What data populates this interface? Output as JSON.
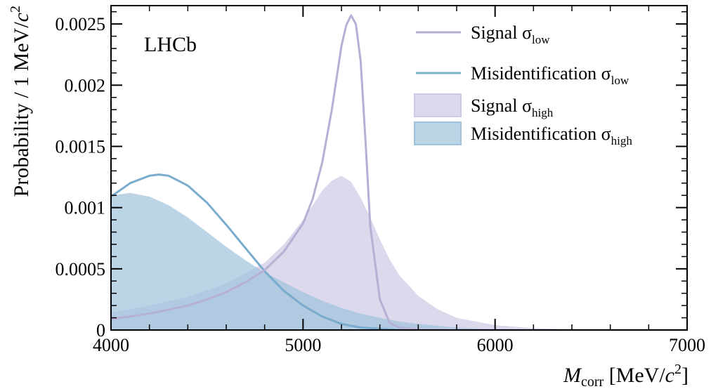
{
  "chart_data": {
    "type": "line",
    "annotation": "LHCb",
    "xlabel": "M",
    "xlabel_sub": "corr",
    "xlabel_unit_prefix": " [MeV/",
    "xlabel_unit_c": "c",
    "xlabel_unit_exp": "2",
    "xlabel_unit_suffix": "]",
    "ylabel_prefix": "Probability / 1 MeV/",
    "ylabel_c": "c",
    "ylabel_exp": "2",
    "xlim": [
      4000,
      7000
    ],
    "ylim": [
      0,
      0.00265
    ],
    "xticks": [
      4000,
      5000,
      6000,
      7000
    ],
    "yticks": [
      0,
      0.0005,
      0.001,
      0.0015,
      0.002,
      0.0025
    ],
    "xtick_labels": [
      "4000",
      "5000",
      "6000",
      "7000"
    ],
    "ytick_labels": [
      "0",
      "0.0005",
      "0.001",
      "0.0015",
      "0.002",
      "0.0025"
    ],
    "legend_position": "top-right",
    "grid": false,
    "series": [
      {
        "name": "Signal",
        "name_symbol": "σ",
        "name_sub": "low",
        "style": "line",
        "color": "#b5b0d4",
        "x": [
          4000,
          4100,
          4200,
          4300,
          4400,
          4500,
          4600,
          4700,
          4800,
          4900,
          5000,
          5050,
          5100,
          5150,
          5200,
          5225,
          5250,
          5275,
          5300,
          5325,
          5350,
          5400,
          5450,
          5500,
          5600,
          5800,
          6000,
          7000
        ],
        "y": [
          9e-05,
          0.00011,
          0.000135,
          0.000165,
          0.0002,
          0.00025,
          0.00031,
          0.00039,
          0.00049,
          0.00064,
          0.00087,
          0.00107,
          0.00137,
          0.0018,
          0.00232,
          0.00249,
          0.00257,
          0.0025,
          0.0022,
          0.00155,
          0.00085,
          0.00025,
          6e-05,
          2e-05,
          5e-06,
          0.0,
          0.0,
          0.0
        ]
      },
      {
        "name": "Misidentification",
        "name_symbol": "σ",
        "name_sub": "low",
        "style": "line",
        "color": "#7aaccd",
        "x": [
          4000,
          4100,
          4200,
          4250,
          4300,
          4400,
          4500,
          4600,
          4700,
          4800,
          4900,
          5000,
          5100,
          5200,
          5300,
          5400,
          5500,
          5600,
          5800,
          6000,
          7000
        ],
        "y": [
          0.00109,
          0.0012,
          0.00126,
          0.00127,
          0.00126,
          0.00118,
          0.00104,
          0.00086,
          0.00067,
          0.00048,
          0.00032,
          0.0002,
          0.00011,
          5e-05,
          2e-05,
          1e-05,
          0.0,
          0.0,
          0.0,
          0.0,
          0.0
        ]
      },
      {
        "name": "Signal",
        "name_symbol": "σ",
        "name_sub": "high",
        "style": "area",
        "color": "#cfc9e5",
        "x": [
          4000,
          4200,
          4400,
          4600,
          4800,
          4900,
          5000,
          5050,
          5100,
          5150,
          5200,
          5250,
          5300,
          5350,
          5400,
          5450,
          5500,
          5600,
          5700,
          5800,
          6000,
          6200,
          6400,
          7000
        ],
        "y": [
          0.00014,
          0.0002,
          0.00027,
          0.00038,
          0.00055,
          0.0007,
          0.0009,
          0.00102,
          0.00114,
          0.00122,
          0.00126,
          0.00121,
          0.00108,
          0.00092,
          0.00074,
          0.00058,
          0.00045,
          0.00028,
          0.00017,
          0.0001,
          4e-05,
          1.5e-05,
          5e-06,
          0.0
        ]
      },
      {
        "name": "Misidentification",
        "name_symbol": "σ",
        "name_sub": "high",
        "style": "area",
        "color": "#9fc3dc",
        "x": [
          4000,
          4050,
          4100,
          4200,
          4300,
          4400,
          4500,
          4600,
          4700,
          4800,
          4900,
          5000,
          5100,
          5200,
          5300,
          5400,
          5500,
          5600,
          5800,
          6000,
          6200,
          7000
        ],
        "y": [
          0.0011,
          0.00111,
          0.00112,
          0.00109,
          0.00102,
          0.00092,
          0.0008,
          0.00068,
          0.00057,
          0.00047,
          0.00039,
          0.00031,
          0.00024,
          0.00018,
          0.000135,
          0.0001,
          7e-05,
          5e-05,
          2e-05,
          8e-06,
          3e-06,
          0.0
        ]
      }
    ]
  }
}
